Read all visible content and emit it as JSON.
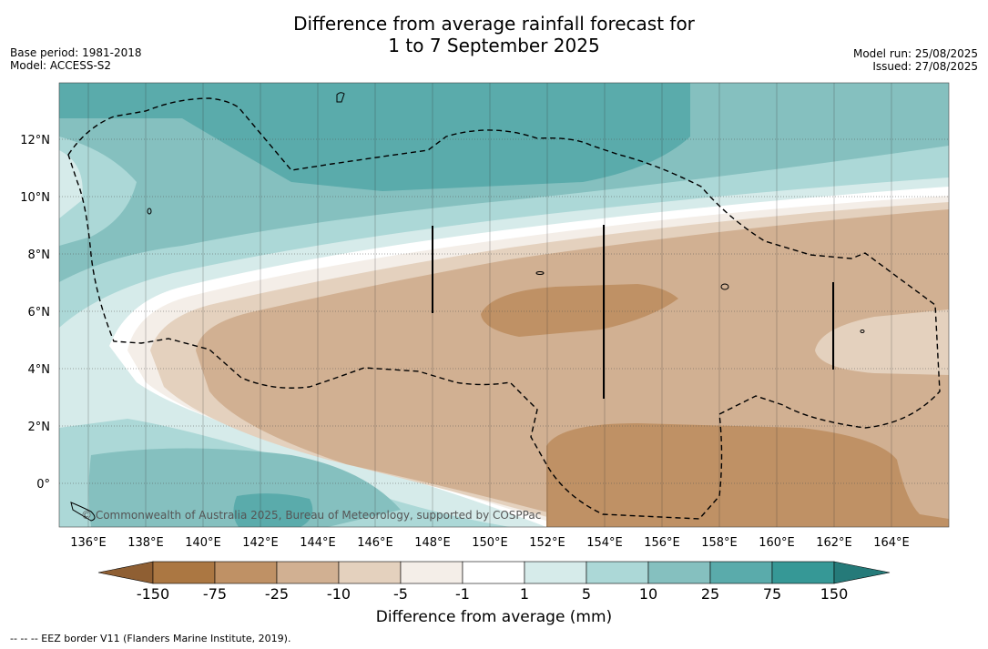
{
  "title": {
    "line1": "Difference from average rainfall forecast for",
    "line2": "1 to 7 September 2025"
  },
  "meta": {
    "base_period": "Base period: 1981-2018",
    "model": "Model: ACCESS-S2",
    "model_run": "Model run: 25/08/2025",
    "issued": "Issued: 27/08/2025"
  },
  "map": {
    "lat_labels": [
      "12°N",
      "10°N",
      "8°N",
      "6°N",
      "4°N",
      "2°N",
      "0°"
    ],
    "lon_labels": [
      "136°E",
      "138°E",
      "140°E",
      "142°E",
      "144°E",
      "146°E",
      "148°E",
      "150°E",
      "152°E",
      "154°E",
      "156°E",
      "158°E",
      "160°E",
      "162°E",
      "164°E"
    ],
    "copyright": "© Commonwealth of Australia 2025, Bureau of Meteorology, supported by COSPPac"
  },
  "colorbar": {
    "ticks": [
      "-150",
      "-75",
      "-25",
      "-10",
      "-5",
      "-1",
      "1",
      "5",
      "10",
      "25",
      "75",
      "150"
    ],
    "colors": [
      "#8f5f33",
      "#ab7742",
      "#bf9165",
      "#d1b092",
      "#e4d1be",
      "#f4eee8",
      "#ffffff",
      "#d6ebea",
      "#acd8d7",
      "#85c0bf",
      "#5aabab",
      "#369896",
      "#257a79"
    ],
    "label": "Difference from average (mm)"
  },
  "footnote": "--  --  -- EEZ border V11 (Flanders Marine Institute, 2019)."
}
